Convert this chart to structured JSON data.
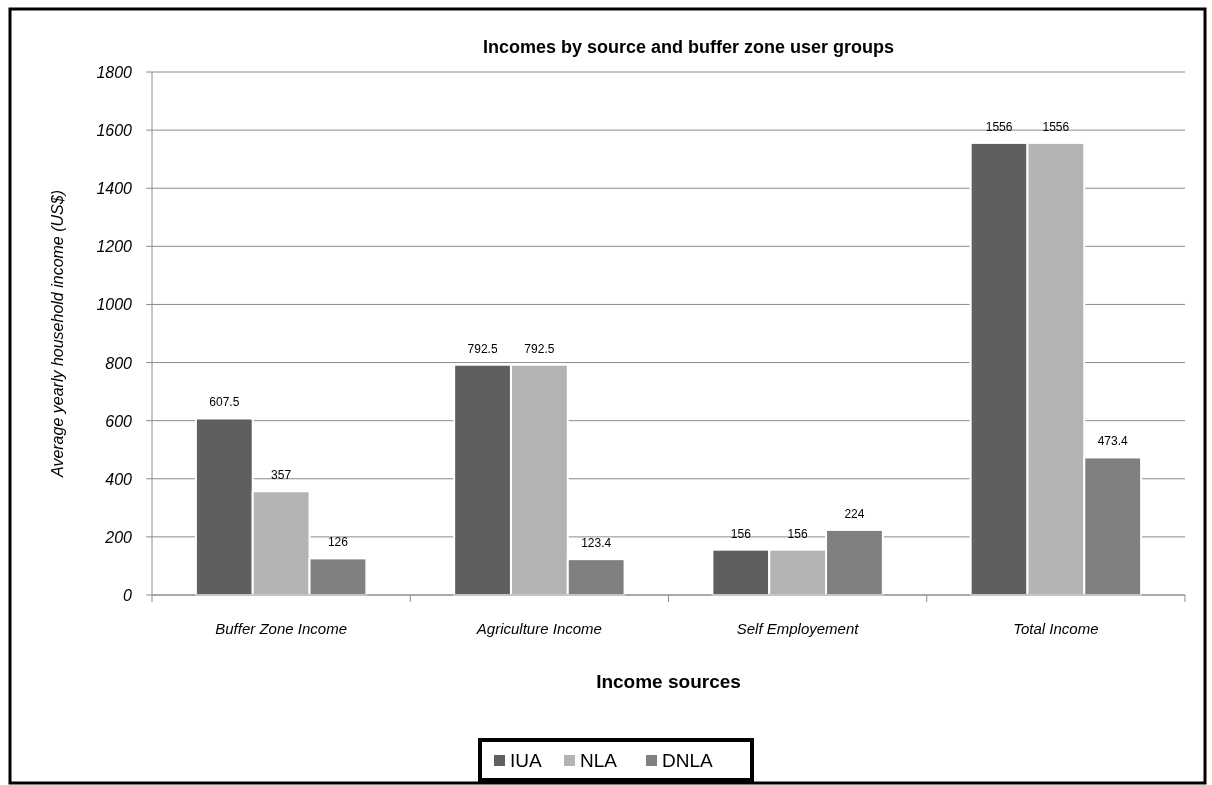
{
  "chart_data": {
    "type": "bar",
    "title": "Incomes by source and buffer zone user groups",
    "xlabel": "Income sources",
    "ylabel": "Average yearly household income (US$)",
    "categories": [
      "Buffer Zone Income",
      "Agriculture Income",
      "Self Employement",
      "Total Income"
    ],
    "series": [
      {
        "name": "IUA",
        "color": "#5f5f5f",
        "values": [
          607.5,
          792.5,
          156,
          1556
        ]
      },
      {
        "name": "NLA",
        "color": "#b3b3b3",
        "values": [
          357,
          792.5,
          156,
          1556
        ]
      },
      {
        "name": "DNLA",
        "color": "#808080",
        "values": [
          126,
          123.4,
          224,
          473.4
        ]
      }
    ],
    "ylim": [
      0,
      1800
    ],
    "yticks": [
      0,
      200,
      400,
      600,
      800,
      1000,
      1200,
      1400,
      1600,
      1800
    ],
    "grid": "y",
    "legend": "bottom",
    "data_labels": true
  }
}
